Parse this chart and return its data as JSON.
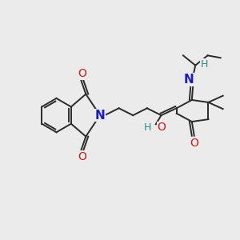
{
  "bg_color": "#ebebeb",
  "bond_color": "#2a2a2a",
  "bond_width": 1.4,
  "atom_colors": {
    "N": "#1a1acc",
    "O": "#cc1a1a",
    "H_teal": "#2a8888"
  },
  "fig_size": [
    3.0,
    3.0
  ],
  "dpi": 100
}
